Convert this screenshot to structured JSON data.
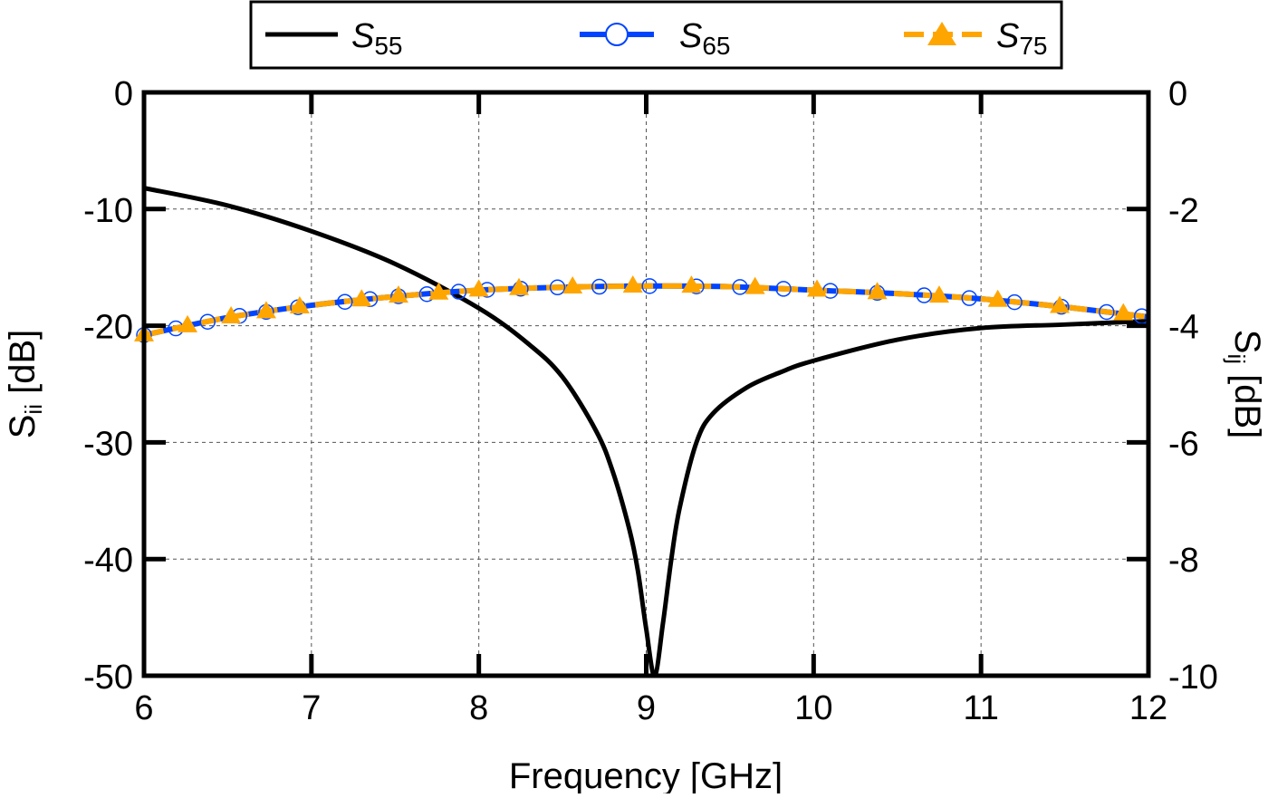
{
  "chart_data": {
    "type": "line",
    "xlabel": "Frequency [GHz]",
    "ylabel_left": {
      "main": "S",
      "sub": "ii",
      "unit": " [dB]"
    },
    "ylabel_right": {
      "main": "S",
      "sub": "ij",
      "unit": " [dB]"
    },
    "xlim": [
      6,
      12
    ],
    "ylim_left": [
      -50,
      0
    ],
    "ylim_right": [
      -10,
      0
    ],
    "xticks": [
      "6",
      "7",
      "8",
      "9",
      "10",
      "11",
      "12"
    ],
    "yticks_left": [
      "0",
      "-10",
      "-20",
      "-30",
      "-40",
      "-50"
    ],
    "yticks_right": [
      "0",
      "-2",
      "-4",
      "-6",
      "-8",
      "-10"
    ],
    "grid": true,
    "legend_position": "top (outside, above plot)",
    "series": [
      {
        "name_main": "S",
        "name_sub": "55",
        "axis": "left",
        "color": "#000000",
        "style": "solid",
        "marker": "none",
        "x": [
          6,
          6.5,
          7,
          7.5,
          8,
          8.3,
          8.5,
          8.7,
          8.8,
          8.9,
          8.95,
          9.0,
          9.05,
          9.1,
          9.15,
          9.2,
          9.3,
          9.4,
          9.6,
          9.8,
          10.0,
          10.5,
          11.0,
          11.5,
          12.0
        ],
        "y": [
          -8.2,
          -9.7,
          -11.9,
          -14.7,
          -18.5,
          -21.6,
          -24.4,
          -29.0,
          -32.5,
          -37.5,
          -41.0,
          -46.0,
          -50.0,
          -45.5,
          -40.0,
          -35.6,
          -30.0,
          -27.5,
          -25.3,
          -24.0,
          -23.0,
          -21.2,
          -20.2,
          -19.9,
          -19.6
        ]
      },
      {
        "name_main": "S",
        "name_sub": "65",
        "axis": "right",
        "color": "#0044ff",
        "style": "solid",
        "marker": "open-circle",
        "x": [
          6,
          6.5,
          7,
          7.5,
          8,
          8.5,
          9,
          9.5,
          10,
          10.5,
          11,
          11.5,
          12
        ],
        "y": [
          -4.16,
          -3.86,
          -3.65,
          -3.5,
          -3.39,
          -3.34,
          -3.32,
          -3.33,
          -3.39,
          -3.45,
          -3.54,
          -3.68,
          -3.85
        ],
        "marker_x": [
          6,
          6.19,
          6.38,
          6.57,
          6.73,
          6.92,
          7.2,
          7.35,
          7.52,
          7.69,
          7.88,
          8.05,
          8.25,
          8.47,
          8.72,
          9.02,
          9.3,
          9.56,
          9.82,
          10.1,
          10.38,
          10.66,
          10.93,
          11.2,
          11.48,
          11.75,
          11.96
        ]
      },
      {
        "name_main": "S",
        "name_sub": "75",
        "axis": "right",
        "color": "#ffa500",
        "style": "dashed",
        "marker": "filled-triangle",
        "x": [
          6,
          6.5,
          7,
          7.5,
          8,
          8.5,
          9,
          9.5,
          10,
          10.5,
          11,
          11.5,
          12
        ],
        "y": [
          -4.16,
          -3.86,
          -3.65,
          -3.5,
          -3.39,
          -3.34,
          -3.32,
          -3.33,
          -3.39,
          -3.45,
          -3.54,
          -3.68,
          -3.85
        ],
        "marker_x": [
          6,
          6.26,
          6.52,
          6.73,
          6.93,
          7.3,
          7.52,
          7.76,
          8.0,
          8.24,
          8.56,
          8.92,
          9.27,
          9.65,
          10.02,
          10.38,
          10.75,
          11.1,
          11.47,
          11.85
        ]
      }
    ]
  }
}
